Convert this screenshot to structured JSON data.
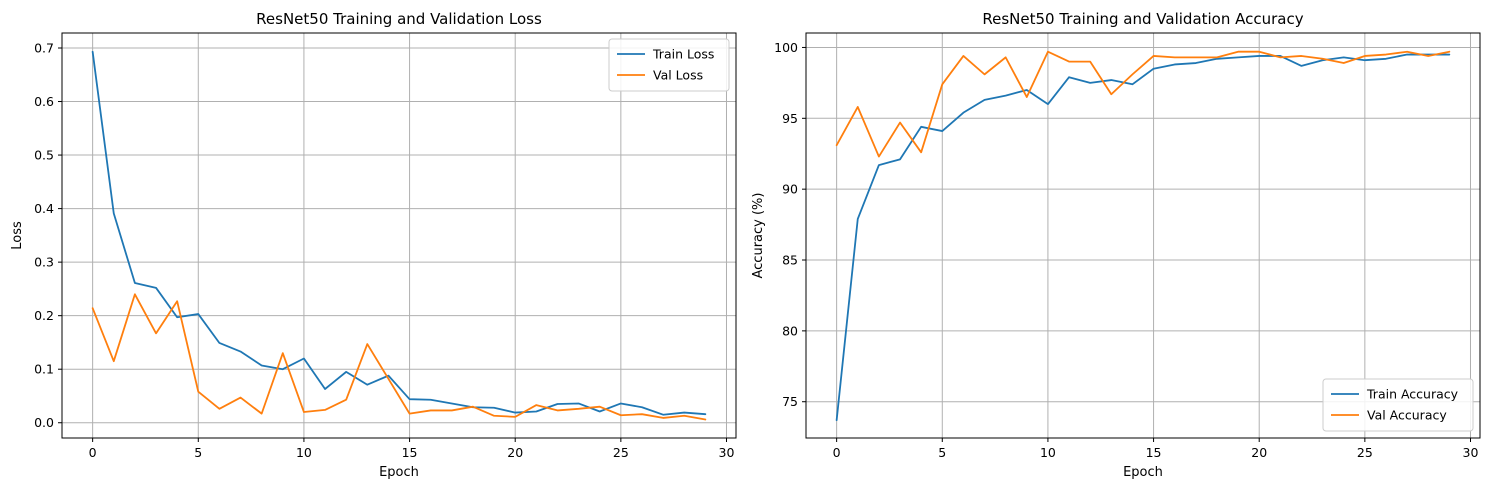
{
  "chart_data": [
    {
      "type": "line",
      "title": "ResNet50 Training and Validation Loss",
      "xlabel": "Epoch",
      "ylabel": "Loss",
      "xlim": [
        -1.45,
        30.45
      ],
      "ylim": [
        -0.0285,
        0.728
      ],
      "xticks": [
        0,
        5,
        10,
        15,
        20,
        25,
        30
      ],
      "yticks": [
        0.0,
        0.1,
        0.2,
        0.3,
        0.4,
        0.5,
        0.6,
        0.7
      ],
      "ytick_labels": [
        "0.0",
        "0.1",
        "0.2",
        "0.3",
        "0.4",
        "0.5",
        "0.6",
        "0.7"
      ],
      "grid": true,
      "legend_position": "top-right",
      "x": [
        0,
        1,
        2,
        3,
        4,
        5,
        6,
        7,
        8,
        9,
        10,
        11,
        12,
        13,
        14,
        15,
        16,
        17,
        18,
        19,
        20,
        21,
        22,
        23,
        24,
        25,
        26,
        27,
        28,
        29
      ],
      "series": [
        {
          "name": "Train Loss",
          "color": "#1f77b4",
          "values": [
            0.693,
            0.391,
            0.261,
            0.252,
            0.197,
            0.203,
            0.149,
            0.133,
            0.107,
            0.1,
            0.12,
            0.063,
            0.095,
            0.071,
            0.088,
            0.044,
            0.043,
            0.036,
            0.029,
            0.028,
            0.019,
            0.021,
            0.035,
            0.036,
            0.021,
            0.036,
            0.029,
            0.015,
            0.019,
            0.016
          ]
        },
        {
          "name": "Val Loss",
          "color": "#ff7f0e",
          "values": [
            0.214,
            0.115,
            0.24,
            0.167,
            0.227,
            0.058,
            0.026,
            0.047,
            0.017,
            0.13,
            0.02,
            0.024,
            0.043,
            0.147,
            0.082,
            0.017,
            0.023,
            0.023,
            0.03,
            0.013,
            0.011,
            0.033,
            0.023,
            0.026,
            0.03,
            0.014,
            0.016,
            0.009,
            0.013,
            0.006
          ]
        }
      ]
    },
    {
      "type": "line",
      "title": "ResNet50 Training and Validation Accuracy",
      "xlabel": "Epoch",
      "ylabel": "Accuracy (%)",
      "xlim": [
        -1.45,
        30.45
      ],
      "ylim": [
        72.44,
        101.02
      ],
      "xticks": [
        0,
        5,
        10,
        15,
        20,
        25,
        30
      ],
      "yticks": [
        75,
        80,
        85,
        90,
        95,
        100
      ],
      "ytick_labels": [
        "75",
        "80",
        "85",
        "90",
        "95",
        "100"
      ],
      "grid": true,
      "legend_position": "bottom-right",
      "x": [
        0,
        1,
        2,
        3,
        4,
        5,
        6,
        7,
        8,
        9,
        10,
        11,
        12,
        13,
        14,
        15,
        16,
        17,
        18,
        19,
        20,
        21,
        22,
        23,
        24,
        25,
        26,
        27,
        28,
        29
      ],
      "series": [
        {
          "name": "Train Accuracy",
          "color": "#1f77b4",
          "values": [
            73.7,
            87.9,
            91.7,
            92.1,
            94.4,
            94.1,
            95.4,
            96.3,
            96.6,
            97.0,
            96.0,
            97.9,
            97.5,
            97.7,
            97.4,
            98.5,
            98.8,
            98.9,
            99.2,
            99.3,
            99.4,
            99.4,
            98.7,
            99.1,
            99.3,
            99.1,
            99.2,
            99.5,
            99.5,
            99.5
          ]
        },
        {
          "name": "Val Accuracy",
          "color": "#ff7f0e",
          "values": [
            93.1,
            95.8,
            92.3,
            94.7,
            92.6,
            97.4,
            99.4,
            98.1,
            99.3,
            96.5,
            99.7,
            99.0,
            99.0,
            96.7,
            98.1,
            99.4,
            99.3,
            99.3,
            99.3,
            99.7,
            99.7,
            99.3,
            99.4,
            99.2,
            98.9,
            99.4,
            99.5,
            99.7,
            99.4,
            99.7
          ]
        }
      ]
    }
  ]
}
